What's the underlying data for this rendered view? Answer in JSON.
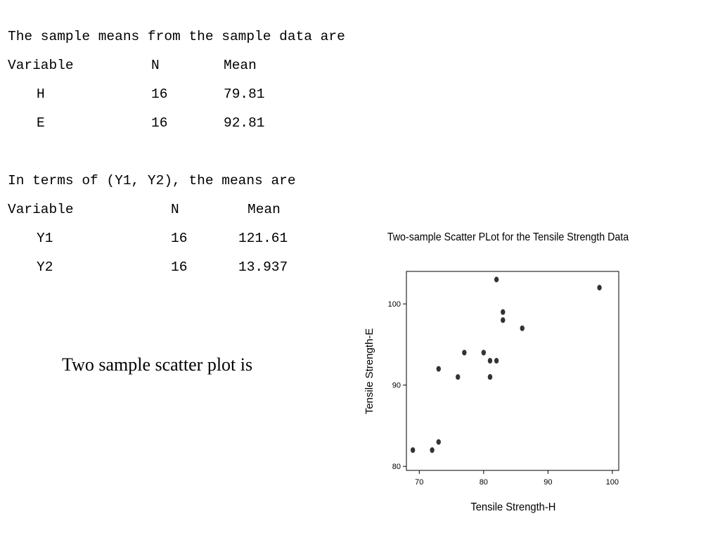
{
  "section1": {
    "heading": "The sample means from the sample data are",
    "header": {
      "variable": "Variable",
      "n": "N",
      "mean": "Mean"
    },
    "rows": [
      {
        "variable": "H",
        "n": "16",
        "mean": "79.81"
      },
      {
        "variable": "E",
        "n": "16",
        "mean": "92.81"
      }
    ]
  },
  "section2": {
    "heading": "In terms of (Y1, Y2), the means are",
    "header": {
      "variable": "Variable",
      "n": "N",
      "mean": "Mean"
    },
    "rows": [
      {
        "variable": "Y1",
        "n": "16",
        "mean": "121.61"
      },
      {
        "variable": "Y2",
        "n": "16",
        "mean": "13.937"
      }
    ]
  },
  "caption": "Two sample scatter plot is",
  "chart_data": {
    "type": "scatter",
    "title": "Two-sample Scatter PLot for the Tensile Strength Data",
    "xlabel": "Tensile Strength-H",
    "ylabel": "Tensile Strength-E",
    "xlim": [
      68,
      101
    ],
    "ylim": [
      79.5,
      104
    ],
    "xticks": [
      70,
      80,
      90,
      100
    ],
    "yticks": [
      80,
      90,
      100
    ],
    "grid": false,
    "point_color": "#333333",
    "points": [
      {
        "x": 69,
        "y": 82
      },
      {
        "x": 72,
        "y": 82
      },
      {
        "x": 73,
        "y": 83
      },
      {
        "x": 73,
        "y": 92
      },
      {
        "x": 76,
        "y": 91
      },
      {
        "x": 77,
        "y": 94
      },
      {
        "x": 80,
        "y": 94
      },
      {
        "x": 81,
        "y": 91
      },
      {
        "x": 81,
        "y": 91
      },
      {
        "x": 81,
        "y": 93
      },
      {
        "x": 82,
        "y": 93
      },
      {
        "x": 82,
        "y": 103
      },
      {
        "x": 83,
        "y": 99
      },
      {
        "x": 83,
        "y": 98
      },
      {
        "x": 86,
        "y": 97
      },
      {
        "x": 98,
        "y": 102
      }
    ]
  }
}
